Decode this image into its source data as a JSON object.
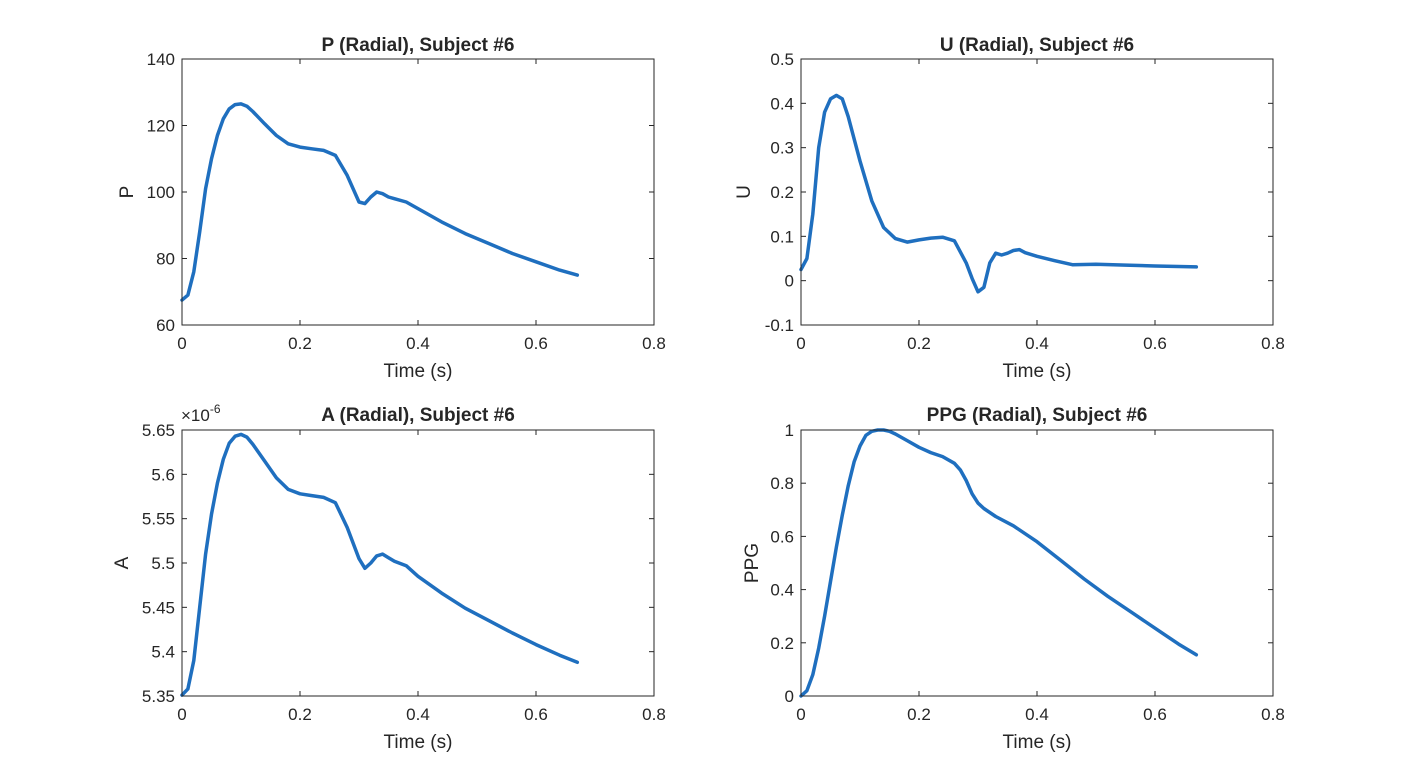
{
  "figure": {
    "background": "#ffffff",
    "line_color": "#1f6fbf"
  },
  "chart_data": [
    {
      "id": "p",
      "type": "line",
      "title": "P (Radial), Subject #6",
      "xlabel": "Time (s)",
      "ylabel": "P",
      "xlim": [
        0,
        0.8
      ],
      "ylim": [
        60,
        140
      ],
      "xticks": [
        0,
        0.2,
        0.4,
        0.6,
        0.8
      ],
      "xtick_labels": [
        "0",
        "0.2",
        "0.4",
        "0.6",
        "0.8"
      ],
      "yticks": [
        60,
        80,
        100,
        120,
        140
      ],
      "ytick_labels": [
        "60",
        "80",
        "100",
        "120",
        "140"
      ],
      "exponent_label": "",
      "grid": false,
      "series": [
        {
          "x": [
            0,
            0.01,
            0.02,
            0.03,
            0.04,
            0.05,
            0.06,
            0.07,
            0.08,
            0.09,
            0.1,
            0.11,
            0.12,
            0.14,
            0.16,
            0.18,
            0.2,
            0.22,
            0.24,
            0.26,
            0.28,
            0.3,
            0.31,
            0.32,
            0.33,
            0.34,
            0.35,
            0.36,
            0.38,
            0.4,
            0.44,
            0.48,
            0.52,
            0.56,
            0.6,
            0.64,
            0.67
          ],
          "y": [
            67.5,
            69,
            76,
            88,
            101,
            110,
            117,
            122,
            125,
            126.3,
            126.5,
            125.8,
            124.2,
            120.5,
            117,
            114.5,
            113.5,
            113,
            112.5,
            111,
            105,
            97,
            96.5,
            98.5,
            100,
            99.5,
            98.5,
            98,
            97,
            95,
            91,
            87.5,
            84.5,
            81.5,
            79,
            76.5,
            75
          ]
        }
      ]
    },
    {
      "id": "u",
      "type": "line",
      "title": "U (Radial), Subject #6",
      "xlabel": "Time (s)",
      "ylabel": "U",
      "xlim": [
        0,
        0.8
      ],
      "ylim": [
        -0.1,
        0.5
      ],
      "xticks": [
        0,
        0.2,
        0.4,
        0.6,
        0.8
      ],
      "xtick_labels": [
        "0",
        "0.2",
        "0.4",
        "0.6",
        "0.8"
      ],
      "yticks": [
        -0.1,
        0,
        0.1,
        0.2,
        0.3,
        0.4,
        0.5
      ],
      "ytick_labels": [
        "-0.1",
        "0",
        "0.1",
        "0.2",
        "0.3",
        "0.4",
        "0.5"
      ],
      "exponent_label": "",
      "grid": false,
      "series": [
        {
          "x": [
            0,
            0.01,
            0.02,
            0.03,
            0.04,
            0.05,
            0.06,
            0.07,
            0.08,
            0.09,
            0.1,
            0.12,
            0.14,
            0.16,
            0.18,
            0.2,
            0.22,
            0.24,
            0.26,
            0.28,
            0.29,
            0.3,
            0.31,
            0.32,
            0.33,
            0.34,
            0.35,
            0.36,
            0.37,
            0.38,
            0.4,
            0.43,
            0.46,
            0.5,
            0.55,
            0.6,
            0.67
          ],
          "y": [
            0.025,
            0.05,
            0.15,
            0.3,
            0.38,
            0.41,
            0.418,
            0.41,
            0.37,
            0.32,
            0.27,
            0.18,
            0.12,
            0.095,
            0.087,
            0.092,
            0.096,
            0.098,
            0.09,
            0.04,
            0.005,
            -0.025,
            -0.015,
            0.04,
            0.062,
            0.058,
            0.062,
            0.068,
            0.07,
            0.063,
            0.055,
            0.045,
            0.036,
            0.037,
            0.035,
            0.033,
            0.031
          ]
        }
      ]
    },
    {
      "id": "a",
      "type": "line",
      "title": "A (Radial), Subject #6",
      "xlabel": "Time (s)",
      "ylabel": "A",
      "xlim": [
        0,
        0.8
      ],
      "ylim": [
        5.35,
        5.65
      ],
      "xticks": [
        0,
        0.2,
        0.4,
        0.6,
        0.8
      ],
      "xtick_labels": [
        "0",
        "0.2",
        "0.4",
        "0.6",
        "0.8"
      ],
      "yticks": [
        5.35,
        5.4,
        5.45,
        5.5,
        5.55,
        5.6,
        5.65
      ],
      "ytick_labels": [
        "5.35",
        "5.4",
        "5.45",
        "5.5",
        "5.55",
        "5.6",
        "5.65"
      ],
      "exponent_label": "×10",
      "exponent_power": "-6",
      "grid": false,
      "series": [
        {
          "x": [
            0,
            0.01,
            0.02,
            0.03,
            0.04,
            0.05,
            0.06,
            0.07,
            0.08,
            0.09,
            0.1,
            0.11,
            0.12,
            0.14,
            0.16,
            0.18,
            0.2,
            0.22,
            0.24,
            0.26,
            0.28,
            0.3,
            0.31,
            0.32,
            0.33,
            0.34,
            0.35,
            0.36,
            0.38,
            0.4,
            0.44,
            0.48,
            0.52,
            0.56,
            0.6,
            0.64,
            0.67
          ],
          "y": [
            5.351,
            5.358,
            5.39,
            5.45,
            5.51,
            5.555,
            5.59,
            5.617,
            5.635,
            5.643,
            5.645,
            5.642,
            5.634,
            5.615,
            5.596,
            5.583,
            5.578,
            5.576,
            5.574,
            5.568,
            5.54,
            5.505,
            5.494,
            5.5,
            5.508,
            5.51,
            5.506,
            5.502,
            5.497,
            5.485,
            5.466,
            5.449,
            5.435,
            5.421,
            5.408,
            5.396,
            5.388
          ]
        }
      ]
    },
    {
      "id": "ppg",
      "type": "line",
      "title": "PPG (Radial), Subject #6",
      "xlabel": "Time (s)",
      "ylabel": "PPG",
      "xlim": [
        0,
        0.8
      ],
      "ylim": [
        0,
        1
      ],
      "xticks": [
        0,
        0.2,
        0.4,
        0.6,
        0.8
      ],
      "xtick_labels": [
        "0",
        "0.2",
        "0.4",
        "0.6",
        "0.8"
      ],
      "yticks": [
        0,
        0.2,
        0.4,
        0.6,
        0.8,
        1
      ],
      "ytick_labels": [
        "0",
        "0.2",
        "0.4",
        "0.6",
        "0.8",
        "1"
      ],
      "exponent_label": "",
      "grid": false,
      "series": [
        {
          "x": [
            0,
            0.01,
            0.02,
            0.03,
            0.04,
            0.05,
            0.06,
            0.07,
            0.08,
            0.09,
            0.1,
            0.11,
            0.12,
            0.13,
            0.14,
            0.15,
            0.16,
            0.18,
            0.2,
            0.22,
            0.24,
            0.26,
            0.27,
            0.28,
            0.29,
            0.3,
            0.31,
            0.33,
            0.36,
            0.4,
            0.44,
            0.48,
            0.52,
            0.56,
            0.6,
            0.64,
            0.67
          ],
          "y": [
            0,
            0.02,
            0.08,
            0.18,
            0.3,
            0.43,
            0.56,
            0.68,
            0.79,
            0.88,
            0.94,
            0.98,
            0.995,
            1,
            1,
            0.995,
            0.985,
            0.96,
            0.935,
            0.915,
            0.9,
            0.875,
            0.85,
            0.81,
            0.76,
            0.725,
            0.705,
            0.675,
            0.64,
            0.58,
            0.51,
            0.44,
            0.375,
            0.315,
            0.255,
            0.195,
            0.155
          ]
        }
      ]
    }
  ]
}
